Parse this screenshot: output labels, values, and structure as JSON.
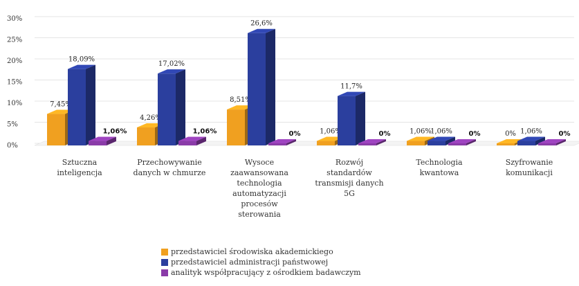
{
  "chart_data": {
    "type": "bar",
    "categories": [
      [
        "Sztuczna",
        "inteligencja"
      ],
      [
        "Przechowywanie",
        "danych w chmurze"
      ],
      [
        "Wysoce",
        "zaawansowana",
        "technologia",
        "automatyzacji",
        "procesów",
        "sterowania"
      ],
      [
        "Rozwój",
        "standardów",
        "transmisji danych",
        "5G"
      ],
      [
        "Technologia",
        "kwantowa"
      ],
      [
        "Szyfrowanie",
        "komunikacji"
      ]
    ],
    "series": [
      {
        "name": "przedstawiciel środowiska akademickiego",
        "color": "#F0A020",
        "values": [
          7.45,
          4.26,
          8.51,
          1.06,
          1.06,
          0
        ],
        "labels": [
          "7,45%",
          "4,26%",
          "8,51%",
          "1,06%",
          "1,06%",
          "0%"
        ]
      },
      {
        "name": "przedstawiciel administracji państwowej",
        "color": "#2B3F9E",
        "values": [
          18.09,
          17.02,
          26.6,
          11.7,
          1.06,
          1.06
        ],
        "labels": [
          "18,09%",
          "17,02%",
          "26,6%",
          "11,7%",
          "1,06%",
          "1,06%"
        ]
      },
      {
        "name": "analityk współpracujący z ośrodkiem badawczym",
        "color": "#8A3BA8",
        "values": [
          1.06,
          1.06,
          0,
          0,
          0,
          0
        ],
        "labels": [
          "1,06%",
          "1,06%",
          "0%",
          "0%",
          "0%",
          "0%"
        ]
      }
    ],
    "yticks": [
      "0%",
      "5%",
      "10%",
      "15%",
      "20%",
      "25%",
      "30%"
    ],
    "ylim": [
      0,
      30
    ],
    "grid": true,
    "legend_position": "bottom"
  }
}
